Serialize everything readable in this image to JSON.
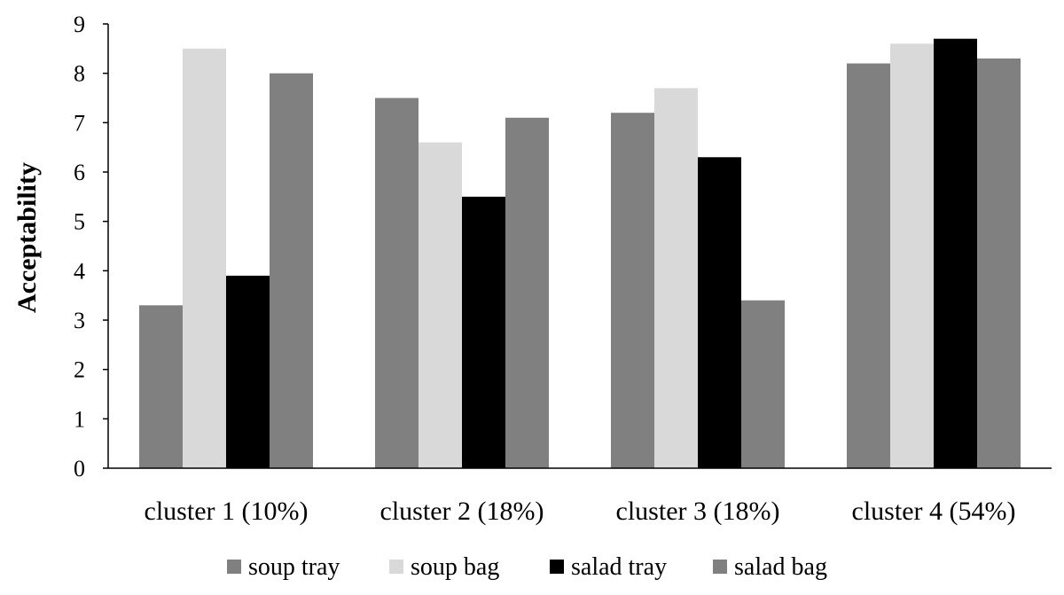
{
  "chart_data": {
    "type": "bar",
    "title": "",
    "xlabel": "",
    "ylabel": "Acceptability",
    "ylim": [
      0,
      9
    ],
    "yticks": [
      "0",
      "1",
      "2",
      "3",
      "4",
      "5",
      "6",
      "7",
      "8",
      "9"
    ],
    "grid": false,
    "legend_position": "bottom",
    "categories": [
      "cluster 1 (10%)",
      "cluster 2 (18%)",
      "cluster 3 (18%)",
      "cluster 4 (54%)"
    ],
    "series": [
      {
        "name": "soup tray",
        "color": "#808080",
        "values": [
          3.3,
          7.5,
          7.2,
          8.2
        ]
      },
      {
        "name": "soup bag",
        "color": "#d9d9d9",
        "values": [
          8.5,
          6.6,
          7.7,
          8.6
        ]
      },
      {
        "name": "salad tray",
        "color": "#000000",
        "values": [
          3.9,
          5.5,
          6.3,
          8.7
        ]
      },
      {
        "name": "salad bag",
        "color": "#808080",
        "values": [
          8.0,
          7.1,
          3.4,
          8.3
        ]
      }
    ]
  }
}
